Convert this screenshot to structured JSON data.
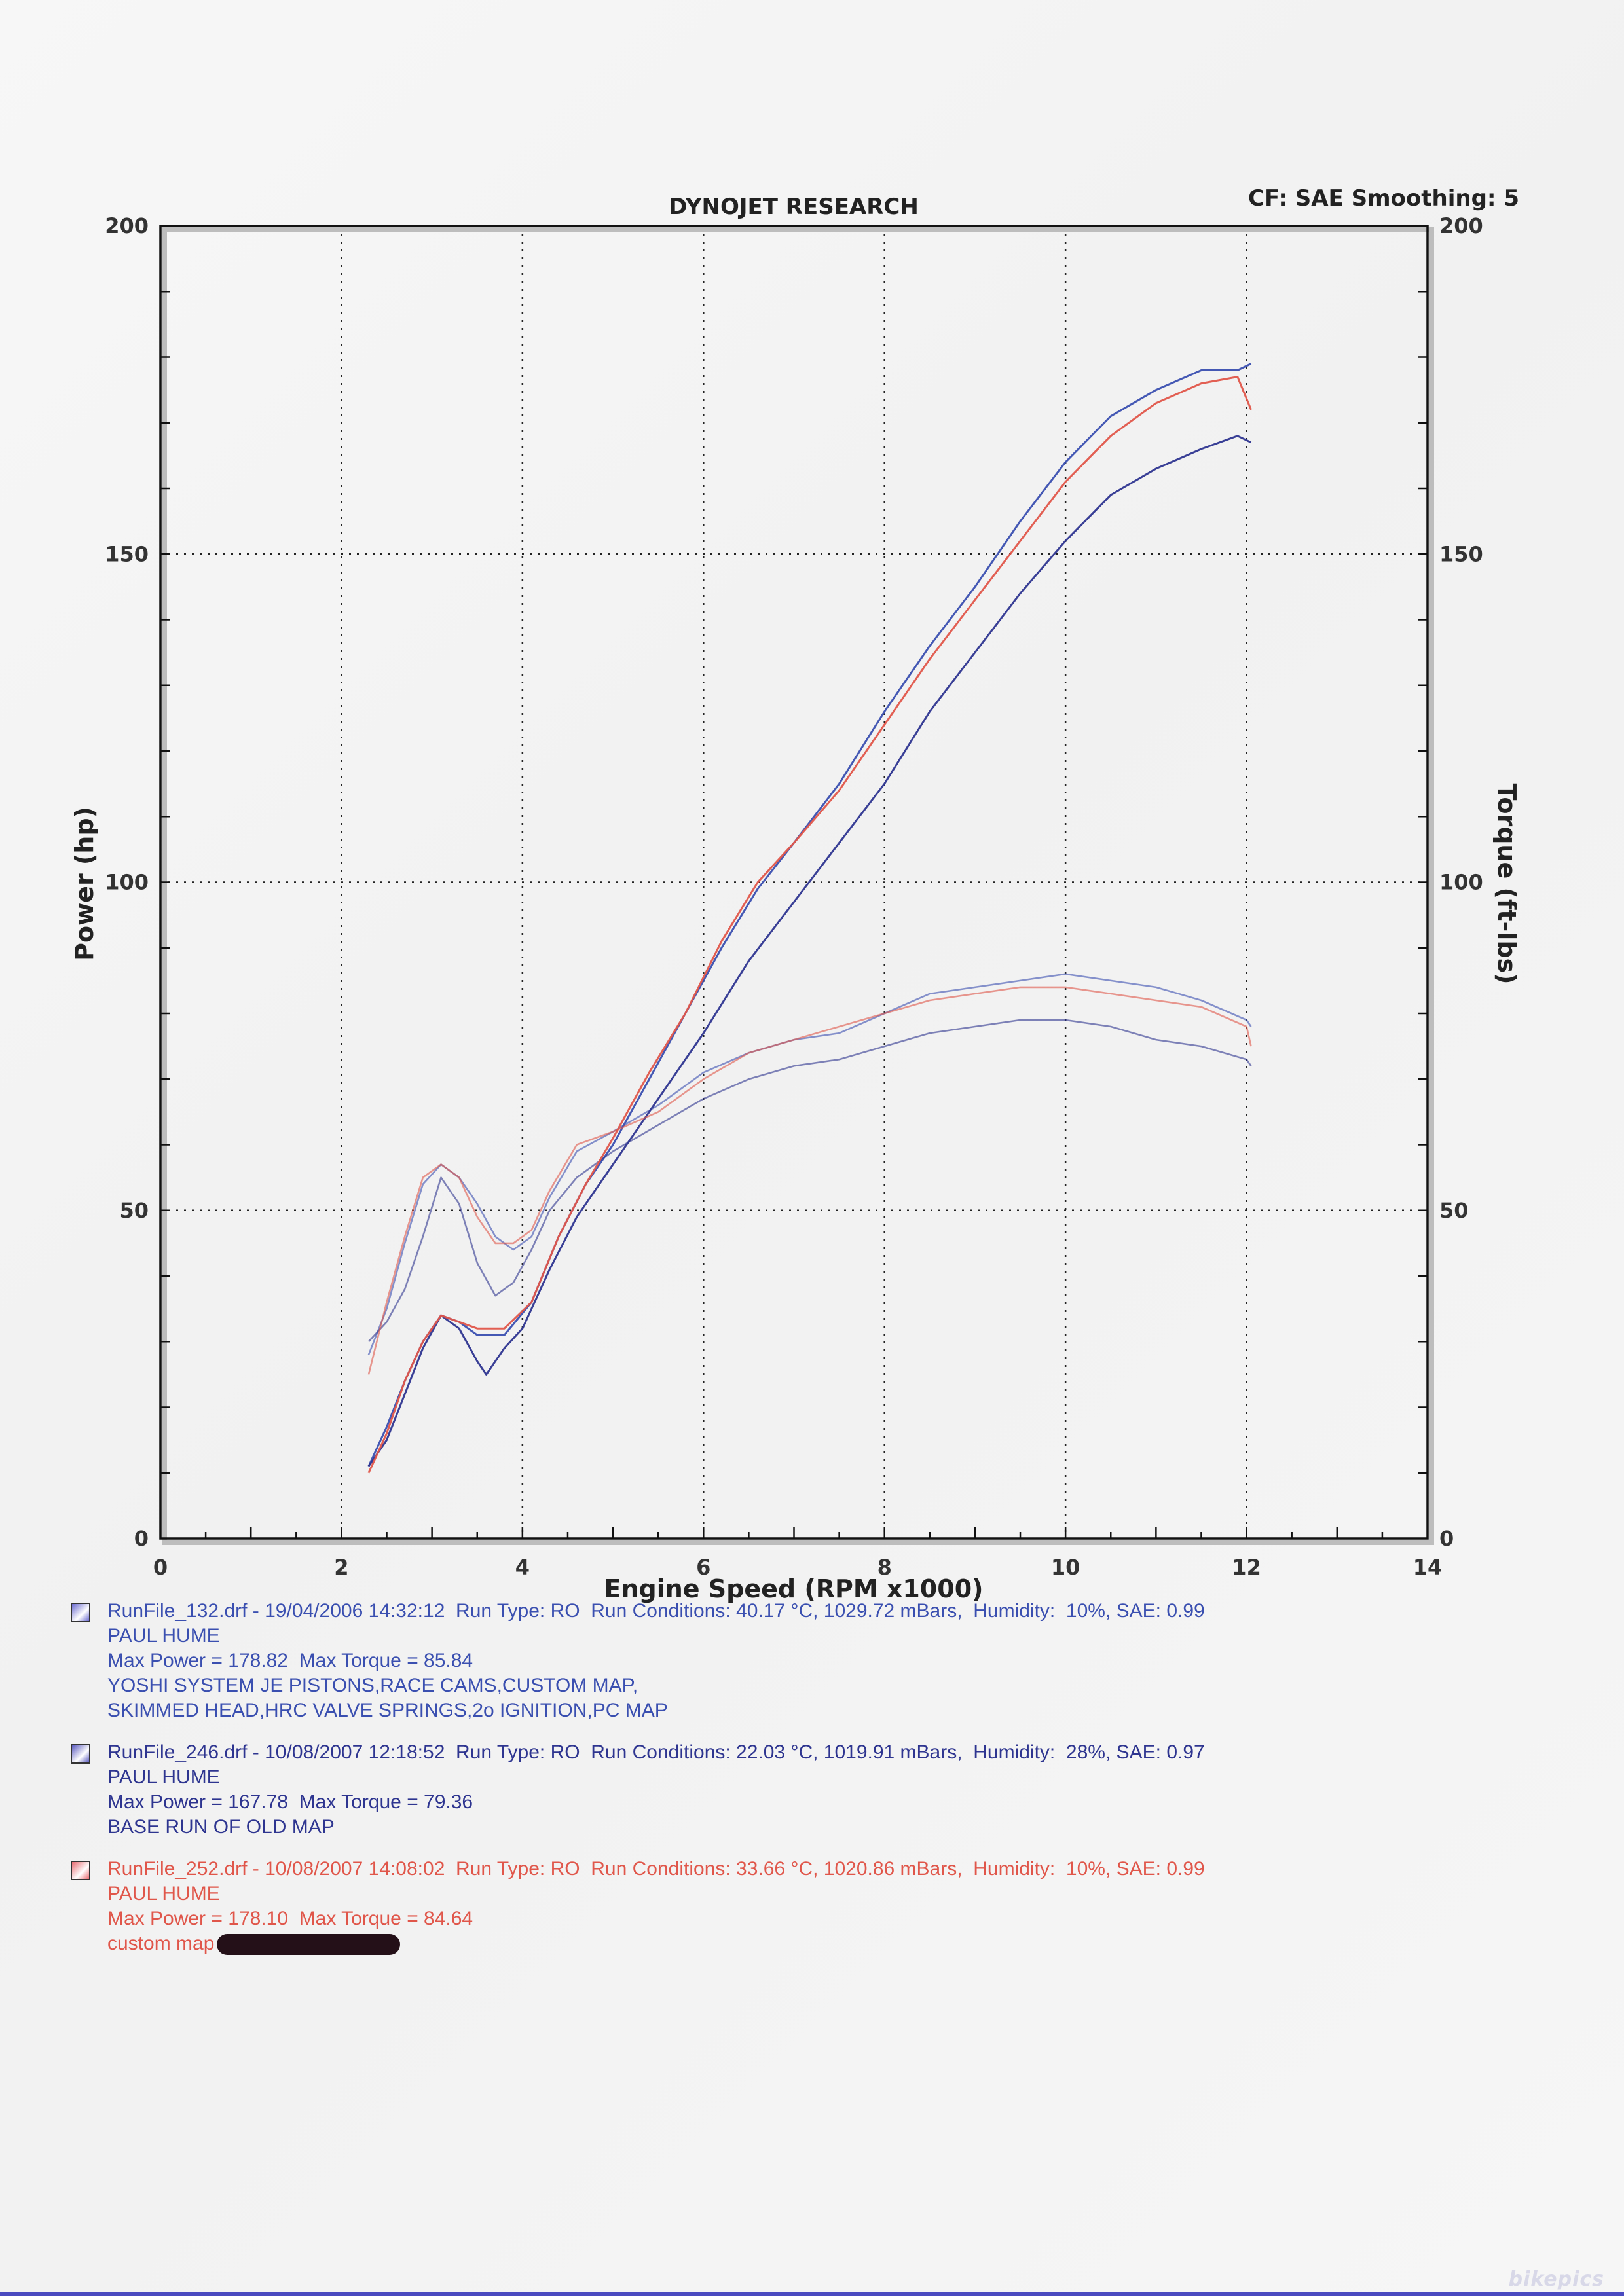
{
  "chart_data": {
    "type": "line",
    "title": "DYNOJET RESEARCH",
    "cf_label": "CF: SAE  Smoothing: 5",
    "xlabel": "Engine Speed (RPM x1000)",
    "ylabel": "Power (hp)",
    "y2label": "Torque (ft-lbs)",
    "xlim": [
      0,
      14
    ],
    "ylim": [
      0,
      200
    ],
    "y2lim": [
      0,
      200
    ],
    "x_ticks": [
      "0",
      "2",
      "4",
      "6",
      "8",
      "10",
      "12",
      "14"
    ],
    "y_ticks": [
      "0",
      "50",
      "100",
      "150",
      "200"
    ],
    "y2_ticks": [
      "0",
      "50",
      "100",
      "150",
      "200"
    ],
    "grid": true,
    "series": [
      {
        "name": "RunFile_132.drf",
        "color": "#3a4fb0",
        "power": {
          "x": [
            2.3,
            2.5,
            2.7,
            2.9,
            3.1,
            3.3,
            3.5,
            3.8,
            4.1,
            4.4,
            4.7,
            5.0,
            5.4,
            5.8,
            6.2,
            6.6,
            7.0,
            7.5,
            8.0,
            8.5,
            9.0,
            9.5,
            10.0,
            10.5,
            11.0,
            11.5,
            11.9,
            12.05
          ],
          "y": [
            11,
            17,
            24,
            30,
            34,
            33,
            31,
            31,
            36,
            46,
            54,
            60,
            70,
            80,
            90,
            99,
            106,
            115,
            126,
            136,
            145,
            155,
            164,
            171,
            175,
            178,
            178,
            179
          ]
        },
        "torque": {
          "x": [
            2.3,
            2.5,
            2.7,
            2.9,
            3.1,
            3.3,
            3.5,
            3.7,
            3.9,
            4.1,
            4.3,
            4.6,
            5.0,
            5.5,
            6.0,
            6.5,
            7.0,
            7.5,
            8.0,
            8.5,
            9.0,
            9.5,
            10.0,
            10.5,
            11.0,
            11.5,
            12.0,
            12.05
          ],
          "y": [
            28,
            35,
            45,
            54,
            57,
            55,
            51,
            46,
            44,
            46,
            52,
            59,
            62,
            66,
            71,
            74,
            76,
            77,
            80,
            83,
            84,
            85,
            86,
            85,
            84,
            82,
            79,
            78
          ]
        }
      },
      {
        "name": "RunFile_246.drf",
        "color": "#2e3590",
        "power": {
          "x": [
            2.3,
            2.5,
            2.7,
            2.9,
            3.1,
            3.3,
            3.5,
            3.6,
            3.8,
            4.0,
            4.3,
            4.6,
            5.0,
            5.5,
            6.0,
            6.5,
            7.0,
            7.5,
            8.0,
            8.5,
            9.0,
            9.5,
            10.0,
            10.5,
            11.0,
            11.5,
            11.9,
            12.05
          ],
          "y": [
            11,
            15,
            22,
            29,
            34,
            32,
            27,
            25,
            29,
            32,
            41,
            49,
            57,
            67,
            77,
            88,
            97,
            106,
            115,
            126,
            135,
            144,
            152,
            159,
            163,
            166,
            168,
            167
          ]
        },
        "torque": {
          "x": [
            2.3,
            2.5,
            2.7,
            2.9,
            3.1,
            3.3,
            3.5,
            3.7,
            3.9,
            4.1,
            4.3,
            4.6,
            5.0,
            5.5,
            6.0,
            6.5,
            7.0,
            7.5,
            8.0,
            8.5,
            9.0,
            9.5,
            10.0,
            10.5,
            11.0,
            11.5,
            12.0,
            12.05
          ],
          "y": [
            30,
            33,
            38,
            46,
            55,
            51,
            42,
            37,
            39,
            44,
            50,
            55,
            59,
            63,
            67,
            70,
            72,
            73,
            75,
            77,
            78,
            79,
            79,
            78,
            76,
            75,
            73,
            72
          ]
        }
      },
      {
        "name": "RunFile_252.drf",
        "color": "#e0564a",
        "power": {
          "x": [
            2.3,
            2.5,
            2.7,
            2.9,
            3.1,
            3.3,
            3.5,
            3.8,
            4.1,
            4.4,
            4.7,
            5.0,
            5.4,
            5.8,
            6.2,
            6.6,
            7.0,
            7.5,
            8.0,
            8.5,
            9.0,
            9.5,
            10.0,
            10.5,
            11.0,
            11.5,
            11.9,
            12.05
          ],
          "y": [
            10,
            16,
            24,
            30,
            34,
            33,
            32,
            32,
            36,
            46,
            54,
            61,
            71,
            80,
            91,
            100,
            106,
            114,
            124,
            134,
            143,
            152,
            161,
            168,
            173,
            176,
            177,
            172
          ]
        },
        "torque": {
          "x": [
            2.3,
            2.5,
            2.7,
            2.9,
            3.1,
            3.3,
            3.5,
            3.7,
            3.9,
            4.1,
            4.3,
            4.6,
            5.0,
            5.5,
            6.0,
            6.5,
            7.0,
            7.5,
            8.0,
            8.5,
            9.0,
            9.5,
            10.0,
            10.5,
            11.0,
            11.5,
            12.0,
            12.05
          ],
          "y": [
            25,
            36,
            46,
            55,
            57,
            55,
            49,
            45,
            45,
            47,
            53,
            60,
            62,
            65,
            70,
            74,
            76,
            78,
            80,
            82,
            83,
            84,
            84,
            83,
            82,
            81,
            78,
            75
          ]
        }
      }
    ]
  },
  "legend": [
    {
      "color": "#3a4fb0",
      "swatch_color": "#6a6ad0",
      "lines": [
        "RunFile_132.drf - 19/04/2006 14:32:12  Run Type: RO  Run Conditions: 40.17 °C, 1029.72 mBars,  Humidity:  10%, SAE: 0.99",
        "PAUL HUME",
        "Max Power = 178.82  Max Torque = 85.84",
        "YOSHI SYSTEM JE PISTONS,RACE CAMS,CUSTOM MAP,",
        "SKIMMED HEAD,HRC VALVE SPRINGS,2o IGNITION,PC MAP"
      ]
    },
    {
      "color": "#2e3590",
      "swatch_color": "#5a5ac0",
      "lines": [
        "RunFile_246.drf - 10/08/2007 12:18:52  Run Type: RO  Run Conditions: 22.03 °C, 1019.91 mBars,  Humidity:  28%, SAE: 0.97",
        "PAUL HUME",
        "Max Power = 167.78  Max Torque = 79.36",
        "BASE RUN OF OLD MAP"
      ]
    },
    {
      "color": "#e0564a",
      "swatch_color": "#e86a70",
      "lines": [
        "RunFile_252.drf - 10/08/2007 14:08:02  Run Type: RO  Run Conditions: 33.66 °C, 1020.86 mBars,  Humidity:  10%, SAE: 0.99",
        "PAUL HUME",
        "Max Power = 178.10  Max Torque = 84.64",
        "custom map"
      ]
    }
  ],
  "watermark": "bikepics"
}
